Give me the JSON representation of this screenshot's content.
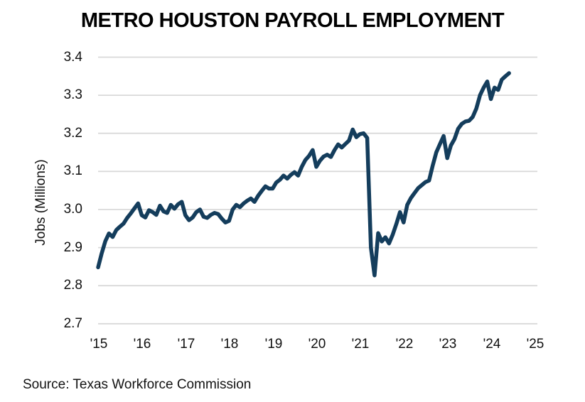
{
  "chart_data": {
    "type": "line",
    "title": "METRO HOUSTON PAYROLL EMPLOYMENT",
    "ylabel": "Jobs (Millions)",
    "source_note": "Source: Texas Workforce Commission",
    "x_tick_labels": [
      "'15",
      "'16",
      "'17",
      "'18",
      "'19",
      "'20",
      "'21",
      "'22",
      "'23",
      "'24",
      "'25"
    ],
    "y_tick_labels": [
      "3.4",
      "3.3",
      "3.2",
      "3.1",
      "3.0",
      "2.9",
      "2.8",
      "2.7"
    ],
    "y_tick_values": [
      3.4,
      3.3,
      3.2,
      3.1,
      3.0,
      2.9,
      2.8,
      2.7
    ],
    "ylim": [
      2.7,
      3.4
    ],
    "grid": "horizontal-only",
    "legend": "none",
    "line_color": "#143d5c",
    "grid_color": "#d9d9d9",
    "text_color": "#101010",
    "series": [
      {
        "name": "Metro Houston payroll employment (millions of jobs)",
        "frequency": "monthly",
        "start": "2015-01",
        "end": "2024-06",
        "values": [
          2.848,
          2.885,
          2.917,
          2.937,
          2.928,
          2.946,
          2.955,
          2.963,
          2.978,
          2.99,
          3.003,
          3.016,
          2.985,
          2.979,
          2.998,
          2.993,
          2.986,
          3.01,
          2.995,
          2.991,
          3.012,
          3.002,
          3.014,
          3.02,
          2.985,
          2.972,
          2.979,
          2.993,
          3.0,
          2.981,
          2.978,
          2.986,
          2.991,
          2.988,
          2.976,
          2.966,
          2.97,
          3.0,
          3.012,
          3.006,
          3.016,
          3.023,
          3.029,
          3.02,
          3.036,
          3.049,
          3.061,
          3.055,
          3.055,
          3.071,
          3.078,
          3.089,
          3.081,
          3.091,
          3.098,
          3.089,
          3.112,
          3.13,
          3.141,
          3.156,
          3.112,
          3.128,
          3.139,
          3.144,
          3.138,
          3.156,
          3.171,
          3.163,
          3.172,
          3.181,
          3.21,
          3.19,
          3.198,
          3.2,
          3.188,
          2.9,
          2.827,
          2.938,
          2.916,
          2.927,
          2.911,
          2.934,
          2.962,
          2.993,
          2.966,
          3.012,
          3.03,
          3.043,
          3.056,
          3.064,
          3.072,
          3.076,
          3.115,
          3.15,
          3.172,
          3.193,
          3.135,
          3.168,
          3.185,
          3.212,
          3.225,
          3.231,
          3.233,
          3.243,
          3.265,
          3.3,
          3.32,
          3.336,
          3.29,
          3.32,
          3.314,
          3.341,
          3.35,
          3.358
        ]
      }
    ]
  }
}
